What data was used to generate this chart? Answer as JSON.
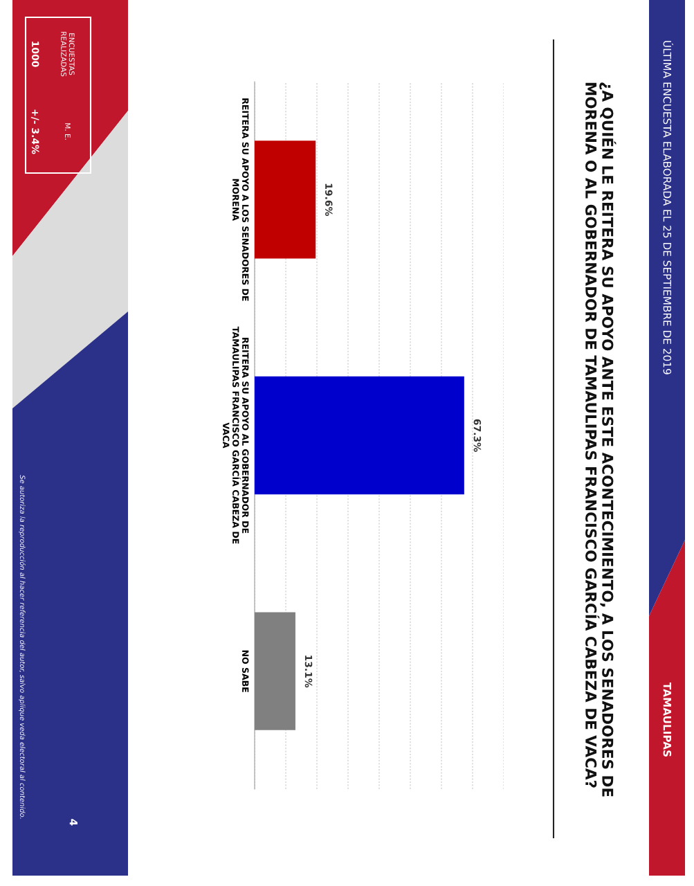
{
  "chart_data": {
    "type": "bar",
    "orientation": "horizontal",
    "title": "¿A QUIÉN LE REITERA SU APOYO ANTE ESTE ACONTECIMIENTO, A LOS SENADORES DE\nMORENA O AL GOBERNADOR DE TAMAULIPAS FRANCISCO GARCÍA CABEZA DE VACA?",
    "subtitle": "ÚLTIMA ENCUESTA ELABORADA EL 25 DE SEPTIEMBRE DE 2019",
    "categories": [
      "REITERA SU APOYO A LOS SENADORES DE\nMORENA",
      "REITERA SU APOYO AL GOBERNADOR DE\nTAMAULIPAS FRANCISCO GARCÍA CABEZA DE\nVACA",
      "NO SABE"
    ],
    "values": [
      19.6,
      67.3,
      13.1
    ],
    "colors": [
      "#c00000",
      "#0000cc",
      "#808080"
    ],
    "value_labels": [
      "19.6%",
      "67.3%",
      "13.1%"
    ],
    "xlim": [
      0,
      80
    ],
    "xticks": [
      {
        "value": 0,
        "label": null
      },
      {
        "value": 10,
        "label": null
      },
      {
        "value": 20,
        "label": null
      },
      {
        "value": 30,
        "label": null
      },
      {
        "value": 40,
        "label": null
      },
      {
        "value": 50,
        "label": null
      },
      {
        "value": 60,
        "label": null
      },
      {
        "value": 70,
        "label": null
      },
      {
        "value": 80,
        "label": null
      }
    ],
    "grid": "x",
    "tick_labels": "y",
    "annotations": [
      "TAMAULIPAS",
      "ENCUESTAS\nREALIZADAS",
      "1000",
      "M. E.",
      "+/- 3.4%",
      "4",
      "Se autoriza la reproducción al hacer referencia del autor, salvo aplique veda electoral al contenido."
    ]
  }
}
